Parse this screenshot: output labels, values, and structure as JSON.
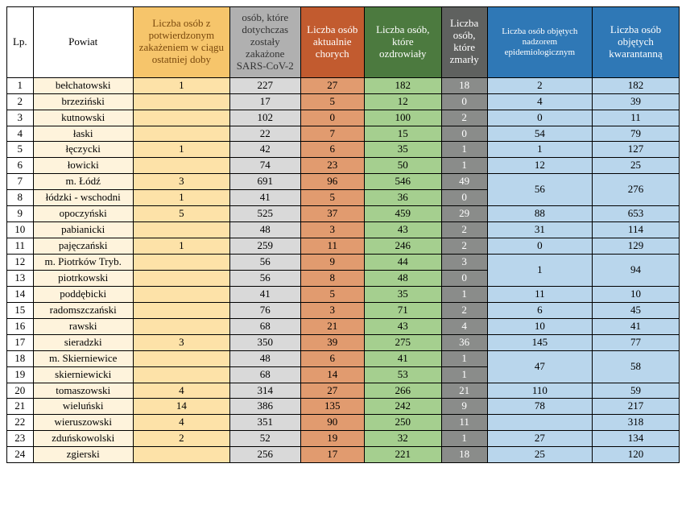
{
  "headers": {
    "lp": "Lp.",
    "powiat": "Powiat",
    "c1": "Liczba osób z potwierdzonym zakażeniem w ciągu ostatniej doby",
    "c2": "osób, które dotychczas zostały zakażone SARS-CoV-2",
    "c3": "Liczba osób aktualnie chorych",
    "c4": "Liczba osób, które ozdrowiały",
    "c5": "Liczba osób, które zmarły",
    "c6": "Liczba osób objętych nadzorem epidemiologicznym",
    "c7": "Liczba osób objętych kwarantanną"
  },
  "rows": [
    {
      "lp": "1",
      "pow": "bełchatowski",
      "c1": "1",
      "c2": "227",
      "c3": "27",
      "c4": "182",
      "c5": "18",
      "c6": "2",
      "c7": "182"
    },
    {
      "lp": "2",
      "pow": "brzeziński",
      "c1": "",
      "c2": "17",
      "c3": "5",
      "c4": "12",
      "c5": "0",
      "c6": "4",
      "c7": "39"
    },
    {
      "lp": "3",
      "pow": "kutnowski",
      "c1": "",
      "c2": "102",
      "c3": "0",
      "c4": "100",
      "c5": "2",
      "c6": "0",
      "c7": "11"
    },
    {
      "lp": "4",
      "pow": "łaski",
      "c1": "",
      "c2": "22",
      "c3": "7",
      "c4": "15",
      "c5": "0",
      "c6": "54",
      "c7": "79"
    },
    {
      "lp": "5",
      "pow": "łęczycki",
      "c1": "1",
      "c2": "42",
      "c3": "6",
      "c4": "35",
      "c5": "1",
      "c6": "1",
      "c7": "127"
    },
    {
      "lp": "6",
      "pow": "łowicki",
      "c1": "",
      "c2": "74",
      "c3": "23",
      "c4": "50",
      "c5": "1",
      "c6": "12",
      "c7": "25"
    },
    {
      "lp": "7",
      "pow": "m. Łódź",
      "c1": "3",
      "c2": "691",
      "c3": "96",
      "c4": "546",
      "c5": "49"
    },
    {
      "lp": "8",
      "pow": "łódzki - wschodni",
      "c1": "1",
      "c2": "41",
      "c3": "5",
      "c4": "36",
      "c5": "0",
      "c6": "56",
      "c7": "276",
      "merge67": 2
    },
    {
      "lp": "9",
      "pow": "opoczyński",
      "c1": "5",
      "c2": "525",
      "c3": "37",
      "c4": "459",
      "c5": "29",
      "c6": "88",
      "c7": "653"
    },
    {
      "lp": "10",
      "pow": "pabianicki",
      "c1": "",
      "c2": "48",
      "c3": "3",
      "c4": "43",
      "c5": "2",
      "c6": "31",
      "c7": "114"
    },
    {
      "lp": "11",
      "pow": "pajęczański",
      "c1": "1",
      "c2": "259",
      "c3": "11",
      "c4": "246",
      "c5": "2",
      "c6": "0",
      "c7": "129"
    },
    {
      "lp": "12",
      "pow": "m. Piotrków Tryb.",
      "c1": "",
      "c2": "56",
      "c3": "9",
      "c4": "44",
      "c5": "3"
    },
    {
      "lp": "13",
      "pow": "piotrkowski",
      "c1": "",
      "c2": "56",
      "c3": "8",
      "c4": "48",
      "c5": "0",
      "c6": "1",
      "c7": "94",
      "merge67": 2
    },
    {
      "lp": "14",
      "pow": "poddębicki",
      "c1": "",
      "c2": "41",
      "c3": "5",
      "c4": "35",
      "c5": "1",
      "c6": "11",
      "c7": "10"
    },
    {
      "lp": "15",
      "pow": "radomszczański",
      "c1": "",
      "c2": "76",
      "c3": "3",
      "c4": "71",
      "c5": "2",
      "c6": "6",
      "c7": "45"
    },
    {
      "lp": "16",
      "pow": "rawski",
      "c1": "",
      "c2": "68",
      "c3": "21",
      "c4": "43",
      "c5": "4",
      "c6": "10",
      "c7": "41"
    },
    {
      "lp": "17",
      "pow": "sieradzki",
      "c1": "3",
      "c2": "350",
      "c3": "39",
      "c4": "275",
      "c5": "36",
      "c6": "145",
      "c7": "77"
    },
    {
      "lp": "18",
      "pow": "m. Skierniewice",
      "c1": "",
      "c2": "48",
      "c3": "6",
      "c4": "41",
      "c5": "1"
    },
    {
      "lp": "19",
      "pow": "skierniewicki",
      "c1": "",
      "c2": "68",
      "c3": "14",
      "c4": "53",
      "c5": "1",
      "c6": "47",
      "c7": "58",
      "merge67": 2
    },
    {
      "lp": "20",
      "pow": "tomaszowski",
      "c1": "4",
      "c2": "314",
      "c3": "27",
      "c4": "266",
      "c5": "21",
      "c6": "110",
      "c7": "59"
    },
    {
      "lp": "21",
      "pow": "wieluński",
      "c1": "14",
      "c2": "386",
      "c3": "135",
      "c4": "242",
      "c5": "9",
      "c6": "78",
      "c7": "217"
    },
    {
      "lp": "22",
      "pow": "wieruszowski",
      "c1": "4",
      "c2": "351",
      "c3": "90",
      "c4": "250",
      "c5": "11",
      "c6": "",
      "c7": "318"
    },
    {
      "lp": "23",
      "pow": "zduńskowolski",
      "c1": "2",
      "c2": "52",
      "c3": "19",
      "c4": "32",
      "c5": "1",
      "c6": "27",
      "c7": "134"
    },
    {
      "lp": "24",
      "pow": "zgierski",
      "c1": "",
      "c2": "256",
      "c3": "17",
      "c4": "221",
      "c5": "18",
      "c6": "25",
      "c7": "120"
    }
  ]
}
